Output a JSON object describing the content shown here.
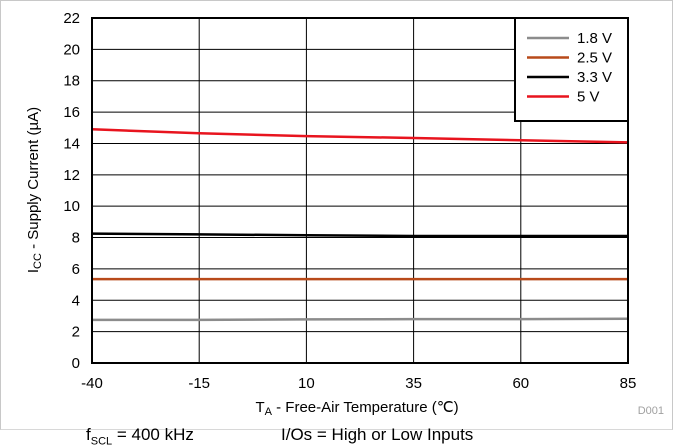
{
  "chart_data": {
    "type": "line",
    "xlabel_main": "T",
    "xlabel_sub": "A",
    "xlabel_rest": " - Free-Air Temperature (℃)",
    "ylabel_main": "I",
    "ylabel_sub": "CC",
    "ylabel_rest": " - Supply Current (µA)",
    "xlim": [
      -40,
      85
    ],
    "ylim": [
      0,
      22
    ],
    "xticks": [
      -40,
      -15,
      10,
      35,
      60,
      85
    ],
    "yticks": [
      0,
      2,
      4,
      6,
      8,
      10,
      12,
      14,
      16,
      18,
      20,
      22
    ],
    "grid": true,
    "legend_position": "top-right",
    "series": [
      {
        "name": "1.8 V",
        "color": "#8c8c8c",
        "x": [
          -40,
          -15,
          10,
          35,
          60,
          85
        ],
        "y": [
          2.75,
          2.75,
          2.78,
          2.8,
          2.8,
          2.82
        ]
      },
      {
        "name": "2.5 V",
        "color": "#b84a1a",
        "x": [
          -40,
          -15,
          10,
          35,
          60,
          85
        ],
        "y": [
          5.35,
          5.35,
          5.35,
          5.35,
          5.35,
          5.35
        ]
      },
      {
        "name": "3.3 V",
        "color": "#000000",
        "x": [
          -40,
          -15,
          10,
          35,
          60,
          85
        ],
        "y": [
          8.25,
          8.2,
          8.15,
          8.1,
          8.1,
          8.1
        ]
      },
      {
        "name": "5 V",
        "color": "#e8141e",
        "x": [
          -40,
          -15,
          10,
          35,
          60,
          85
        ],
        "y": [
          14.9,
          14.65,
          14.47,
          14.35,
          14.2,
          14.07
        ]
      }
    ],
    "annotation": "D001"
  },
  "footnotes": {
    "left_main": "f",
    "left_sub": "SCL",
    "left_rest": " = 400 kHz",
    "right": "I/Os = High or Low Inputs"
  }
}
